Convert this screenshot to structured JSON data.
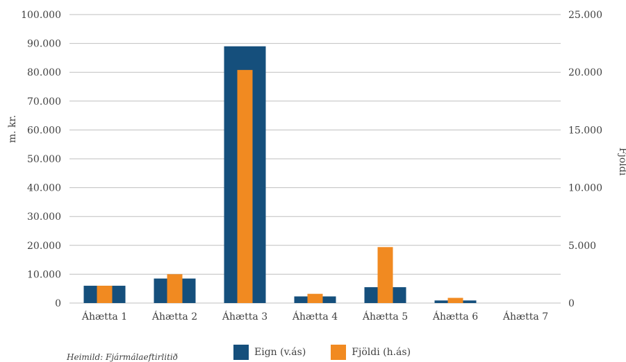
{
  "chart_data": {
    "type": "bar",
    "categories": [
      "Áhætta 1",
      "Áhætta 2",
      "Áhætta 3",
      "Áhætta 4",
      "Áhætta 5",
      "Áhætta 6",
      "Áhætta 7"
    ],
    "series": [
      {
        "name": "Eign (v.ás)",
        "axis": "left",
        "color": "#154f7c",
        "values": [
          6000,
          8500,
          89000,
          2300,
          5500,
          900,
          0
        ]
      },
      {
        "name": "Fjöldi (h.ás)",
        "axis": "right",
        "color": "#f18a21",
        "values": [
          1500,
          2500,
          20200,
          800,
          4850,
          450,
          0
        ]
      }
    ],
    "ylabel": "m. kr.",
    "y2label": "Fjöldi",
    "ylim": [
      0,
      100000
    ],
    "y2lim": [
      0,
      25000
    ],
    "yticks": [
      "0",
      "10.000",
      "20.000",
      "30.000",
      "40.000",
      "50.000",
      "60.000",
      "70.000",
      "80.000",
      "90.000",
      "100.000"
    ],
    "y2ticks": [
      "0",
      "5.000",
      "10.000",
      "15.000",
      "20.000",
      "25.000"
    ],
    "grid": true,
    "legend": "bottom"
  },
  "source": "Heimild: Fjármálaeftirlitið"
}
